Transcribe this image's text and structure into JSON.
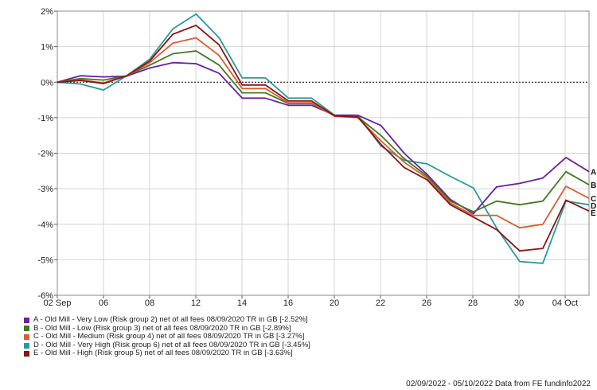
{
  "chart_data": {
    "type": "line",
    "x_ticks": [
      "02 Sep",
      "06",
      "08",
      "12",
      "14",
      "16",
      "20",
      "22",
      "26",
      "28",
      "30",
      "04 Oct"
    ],
    "y_ticks": [
      "2%",
      "1%",
      "0%",
      "-1%",
      "-2%",
      "-3%",
      "-4%",
      "-5%",
      "-6%"
    ],
    "ylim": [
      -6,
      2
    ],
    "grid": true,
    "zero_line": "dashed",
    "series": [
      {
        "name": "A - Old Mill - Very Low (Risk group 2) net of all fees 08/09/2020 TR in GB [-2.52%]",
        "label": "A",
        "color": "#6a1fa6",
        "values": [
          0,
          0.18,
          0.15,
          0.17,
          0.4,
          0.55,
          0.52,
          0.25,
          -0.45,
          -0.45,
          -0.65,
          -0.65,
          -0.93,
          -0.93,
          -1.22,
          -2.0,
          -2.6,
          -3.3,
          -3.7,
          -2.95,
          -2.85,
          -2.7,
          -2.12,
          -2.52
        ]
      },
      {
        "name": "B - Old Mill - Low (Risk group 3) net of all fees 08/09/2020 TR in GB [-2.89%]",
        "label": "B",
        "color": "#3f7a1f",
        "values": [
          0,
          0.1,
          0.06,
          0.18,
          0.48,
          0.8,
          0.88,
          0.48,
          -0.3,
          -0.3,
          -0.6,
          -0.6,
          -0.95,
          -0.98,
          -1.5,
          -2.15,
          -2.65,
          -3.35,
          -3.65,
          -3.35,
          -3.45,
          -3.35,
          -2.52,
          -2.89
        ]
      },
      {
        "name": "C - Old Mill - Medium (Risk group 4) net of all fees 08/09/2020 TR in GB [-3.27%]",
        "label": "C",
        "color": "#dd5c2e",
        "values": [
          0,
          0.06,
          -0.02,
          0.18,
          0.55,
          1.1,
          1.25,
          0.75,
          -0.18,
          -0.18,
          -0.58,
          -0.58,
          -0.96,
          -1.0,
          -1.65,
          -2.25,
          -2.7,
          -3.4,
          -3.75,
          -3.75,
          -4.1,
          -4.0,
          -2.93,
          -3.27
        ]
      },
      {
        "name": "D - Old Mill - Very High (Risk group 6) net of all fees 08/09/2020 TR in GB [-3.45%]",
        "label": "D",
        "color": "#2a9a9a",
        "values": [
          0,
          -0.05,
          -0.22,
          0.18,
          0.65,
          1.5,
          1.92,
          1.25,
          0.12,
          0.12,
          -0.45,
          -0.45,
          -0.93,
          -0.93,
          -1.8,
          -2.2,
          -2.3,
          -2.65,
          -2.98,
          -4.1,
          -5.05,
          -5.1,
          -3.35,
          -3.45
        ]
      },
      {
        "name": "E - Old Mill - High (Risk group 5) net of all fees 08/09/2020 TR in GB [-3.63%]",
        "label": "E",
        "color": "#8b1414",
        "values": [
          0,
          0.05,
          -0.04,
          0.18,
          0.6,
          1.35,
          1.6,
          1.05,
          -0.08,
          -0.08,
          -0.53,
          -0.53,
          -0.95,
          -0.98,
          -1.75,
          -2.4,
          -2.75,
          -3.45,
          -3.8,
          -4.15,
          -4.75,
          -4.68,
          -3.32,
          -3.63
        ]
      }
    ]
  },
  "footer": {
    "text": "02/09/2022 - 05/10/2022 Data from FE fundinfo2022"
  }
}
